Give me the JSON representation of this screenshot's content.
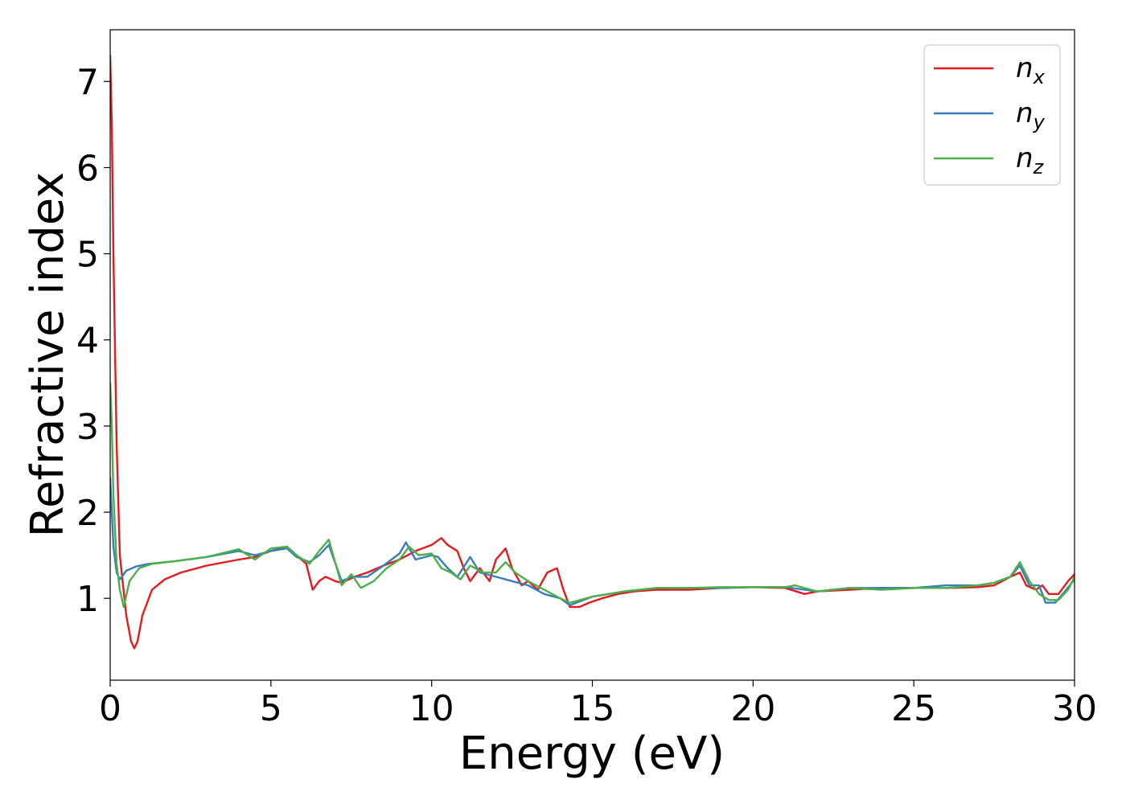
{
  "chart_data": {
    "type": "line",
    "xlabel": "Energy (eV)",
    "ylabel": "Refractive index",
    "xlim": [
      0,
      30
    ],
    "ylim": [
      0.05,
      7.6
    ],
    "xticks": [
      0,
      5,
      10,
      15,
      20,
      25,
      30
    ],
    "yticks": [
      1,
      2,
      3,
      4,
      5,
      6,
      7
    ],
    "grid": false,
    "legend_position": "top-right",
    "series": [
      {
        "name": "n",
        "subscript": "x",
        "color": "#e41a1c",
        "x": [
          0,
          0.05,
          0.1,
          0.2,
          0.3,
          0.5,
          0.65,
          0.75,
          0.85,
          1.0,
          1.3,
          1.7,
          2.2,
          3.0,
          4.0,
          4.5,
          5.0,
          5.5,
          5.8,
          6.1,
          6.3,
          6.5,
          6.7,
          7.0,
          7.2,
          7.6,
          8.0,
          8.5,
          9.0,
          9.5,
          10.0,
          10.3,
          10.5,
          10.8,
          11.0,
          11.2,
          11.5,
          11.8,
          12.0,
          12.3,
          12.5,
          12.8,
          13.0,
          13.3,
          13.6,
          13.9,
          14.1,
          14.3,
          14.6,
          14.9,
          15.3,
          15.8,
          16.3,
          17.0,
          18.0,
          19.0,
          20.0,
          21.0,
          21.6,
          22.0,
          23.0,
          24.0,
          25.0,
          26.0,
          27.0,
          27.5,
          28.0,
          28.3,
          28.5,
          28.8,
          29.0,
          29.2,
          29.5,
          29.8,
          30.0
        ],
        "y": [
          7.3,
          6.5,
          5.0,
          2.8,
          1.5,
          0.8,
          0.5,
          0.42,
          0.5,
          0.8,
          1.1,
          1.22,
          1.3,
          1.38,
          1.45,
          1.48,
          1.55,
          1.6,
          1.5,
          1.4,
          1.1,
          1.2,
          1.25,
          1.2,
          1.18,
          1.25,
          1.3,
          1.38,
          1.45,
          1.55,
          1.62,
          1.7,
          1.62,
          1.55,
          1.35,
          1.2,
          1.35,
          1.2,
          1.45,
          1.58,
          1.35,
          1.15,
          1.2,
          1.1,
          1.3,
          1.35,
          1.1,
          0.9,
          0.9,
          0.95,
          1.0,
          1.05,
          1.08,
          1.1,
          1.1,
          1.12,
          1.13,
          1.12,
          1.05,
          1.08,
          1.1,
          1.12,
          1.12,
          1.12,
          1.13,
          1.15,
          1.25,
          1.3,
          1.15,
          1.1,
          1.15,
          1.05,
          1.05,
          1.2,
          1.28
        ]
      },
      {
        "name": "n",
        "subscript": "y",
        "color": "#377eb8",
        "x": [
          0,
          0.05,
          0.1,
          0.2,
          0.3,
          0.5,
          0.8,
          1.2,
          2.0,
          3.0,
          4.0,
          4.5,
          5.0,
          5.5,
          5.8,
          6.2,
          6.5,
          6.8,
          7.2,
          7.5,
          8.0,
          8.5,
          9.0,
          9.2,
          9.5,
          10.0,
          10.2,
          10.5,
          10.8,
          11.2,
          11.5,
          12.0,
          12.5,
          13.0,
          13.5,
          14.0,
          14.3,
          15.0,
          16.0,
          17.0,
          18.0,
          19.0,
          20.0,
          21.0,
          22.0,
          23.0,
          24.0,
          25.0,
          26.0,
          27.0,
          27.5,
          28.0,
          28.3,
          28.6,
          28.9,
          29.1,
          29.4,
          29.7,
          30.0
        ],
        "y": [
          2.4,
          2.0,
          1.6,
          1.3,
          1.22,
          1.32,
          1.37,
          1.4,
          1.43,
          1.48,
          1.55,
          1.5,
          1.55,
          1.58,
          1.48,
          1.42,
          1.5,
          1.62,
          1.2,
          1.25,
          1.25,
          1.38,
          1.52,
          1.65,
          1.45,
          1.5,
          1.48,
          1.35,
          1.25,
          1.48,
          1.3,
          1.25,
          1.2,
          1.15,
          1.05,
          1.0,
          0.92,
          1.02,
          1.08,
          1.12,
          1.12,
          1.12,
          1.13,
          1.13,
          1.08,
          1.12,
          1.12,
          1.12,
          1.15,
          1.15,
          1.18,
          1.25,
          1.38,
          1.15,
          1.15,
          0.95,
          0.95,
          1.08,
          1.22
        ]
      },
      {
        "name": "n",
        "subscript": "z",
        "color": "#4daf4a",
        "x": [
          0,
          0.05,
          0.1,
          0.2,
          0.3,
          0.42,
          0.6,
          0.9,
          1.3,
          2.0,
          3.0,
          4.0,
          4.5,
          5.0,
          5.5,
          5.8,
          6.2,
          6.5,
          6.8,
          7.2,
          7.5,
          7.8,
          8.2,
          8.6,
          9.0,
          9.3,
          9.6,
          10.0,
          10.3,
          10.6,
          10.9,
          11.2,
          11.6,
          12.0,
          12.3,
          12.6,
          13.0,
          13.5,
          14.0,
          14.3,
          15.0,
          16.0,
          17.0,
          18.0,
          19.0,
          20.0,
          21.0,
          21.3,
          22.0,
          23.0,
          24.0,
          25.0,
          26.0,
          27.0,
          27.5,
          28.0,
          28.3,
          28.6,
          28.9,
          29.2,
          29.5,
          29.8,
          30.0
        ],
        "y": [
          3.5,
          3.0,
          2.2,
          1.4,
          1.1,
          0.9,
          1.2,
          1.35,
          1.4,
          1.43,
          1.48,
          1.57,
          1.45,
          1.58,
          1.6,
          1.5,
          1.4,
          1.55,
          1.68,
          1.15,
          1.28,
          1.12,
          1.2,
          1.35,
          1.45,
          1.6,
          1.5,
          1.52,
          1.35,
          1.3,
          1.22,
          1.38,
          1.3,
          1.3,
          1.42,
          1.3,
          1.2,
          1.1,
          1.0,
          0.95,
          1.02,
          1.08,
          1.12,
          1.12,
          1.13,
          1.13,
          1.13,
          1.15,
          1.08,
          1.12,
          1.1,
          1.12,
          1.12,
          1.15,
          1.18,
          1.25,
          1.42,
          1.2,
          1.05,
          0.98,
          0.98,
          1.1,
          1.25
        ]
      }
    ]
  }
}
